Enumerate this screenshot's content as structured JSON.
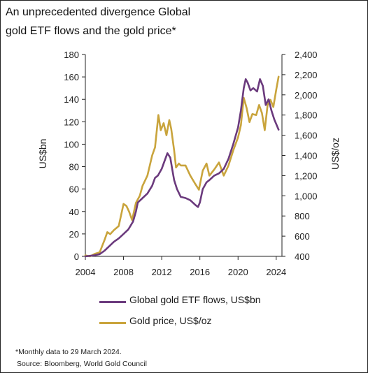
{
  "chart_data": {
    "type": "line",
    "title": "An unprecedented divergence Global gold ETF flows and the gold price*",
    "title_lines": [
      "An unprecedented divergence Global",
      "gold ETF flows and the gold price*"
    ],
    "xlabel": "",
    "ylabel": "US$bn",
    "y2label": "US$/oz",
    "xlim": [
      2004,
      2024.6
    ],
    "ylim": [
      0,
      180
    ],
    "y2lim": [
      400,
      2400
    ],
    "x_ticks": [
      "2004",
      "2008",
      "2012",
      "2016",
      "2020",
      "2024"
    ],
    "x_tick_values": [
      2004,
      2008,
      2012,
      2016,
      2020,
      2024
    ],
    "y_ticks": [
      "0",
      "20",
      "40",
      "60",
      "80",
      "100",
      "120",
      "140",
      "160",
      "180"
    ],
    "y_tick_values": [
      0,
      20,
      40,
      60,
      80,
      100,
      120,
      140,
      160,
      180
    ],
    "y2_ticks": [
      "400",
      "600",
      "800",
      "1,000",
      "1,200",
      "1,400",
      "1,600",
      "1,800",
      "2,000",
      "2,200",
      "2,400"
    ],
    "y2_tick_values": [
      400,
      600,
      800,
      1000,
      1200,
      1400,
      1600,
      1800,
      2000,
      2200,
      2400
    ],
    "grid": false,
    "legend_position": "bottom",
    "series": [
      {
        "name": "Global gold ETF flows, US$bn",
        "axis": "left",
        "color": "#6b3a7d",
        "x": [
          2004,
          2004.5,
          2005,
          2005.5,
          2006,
          2006.5,
          2007,
          2007.5,
          2008,
          2008.5,
          2009,
          2009.3,
          2009.5,
          2010,
          2010.5,
          2011,
          2011.3,
          2011.6,
          2012,
          2012.3,
          2012.6,
          2012.9,
          2013.1,
          2013.3,
          2013.6,
          2014,
          2014.5,
          2015,
          2015.5,
          2015.8,
          2016,
          2016.3,
          2016.7,
          2017,
          2017.5,
          2018,
          2018.5,
          2019,
          2019.5,
          2020,
          2020.3,
          2020.6,
          2020.8,
          2021,
          2021.3,
          2021.6,
          2022,
          2022.3,
          2022.6,
          2022.9,
          2023.2,
          2023.5,
          2023.8,
          2024,
          2024.25
        ],
        "values": [
          0,
          0.5,
          1,
          2,
          5,
          9,
          13,
          16,
          20,
          24,
          31,
          40,
          48,
          52,
          56,
          63,
          70,
          72,
          78,
          85,
          92,
          88,
          78,
          68,
          60,
          53,
          52,
          50,
          46,
          44,
          48,
          60,
          66,
          68,
          72,
          74,
          78,
          87,
          100,
          115,
          130,
          150,
          158,
          155,
          148,
          150,
          147,
          158,
          152,
          135,
          140,
          130,
          122,
          118,
          113
        ]
      },
      {
        "name": "Gold price, US$/oz",
        "axis": "right",
        "color": "#c9a43c",
        "x": [
          2004,
          2004.5,
          2005,
          2005.5,
          2006,
          2006.3,
          2006.6,
          2007,
          2007.5,
          2008,
          2008.3,
          2008.6,
          2008.9,
          2009.3,
          2009.7,
          2010,
          2010.5,
          2011,
          2011.3,
          2011.65,
          2011.9,
          2012.2,
          2012.5,
          2012.8,
          2013,
          2013.3,
          2013.5,
          2013.8,
          2014,
          2014.5,
          2015,
          2015.5,
          2015.9,
          2016.3,
          2016.7,
          2017,
          2017.5,
          2018,
          2018.5,
          2019,
          2019.5,
          2020,
          2020.3,
          2020.6,
          2020.9,
          2021.2,
          2021.5,
          2021.9,
          2022.2,
          2022.5,
          2022.8,
          2023.1,
          2023.4,
          2023.7,
          2024,
          2024.25
        ],
        "values": [
          410,
          400,
          425,
          440,
          560,
          640,
          620,
          660,
          700,
          920,
          900,
          840,
          760,
          930,
          1000,
          1100,
          1200,
          1400,
          1480,
          1800,
          1650,
          1720,
          1600,
          1750,
          1660,
          1450,
          1280,
          1320,
          1300,
          1300,
          1200,
          1120,
          1060,
          1250,
          1320,
          1200,
          1260,
          1330,
          1200,
          1300,
          1450,
          1580,
          1700,
          1970,
          1870,
          1730,
          1810,
          1800,
          1900,
          1820,
          1650,
          1900,
          1950,
          1880,
          2050,
          2180
        ]
      }
    ],
    "footnotes": [
      "*Monthly data to 29 March 2024.",
      "Source: Bloomberg, World Gold Council"
    ]
  }
}
